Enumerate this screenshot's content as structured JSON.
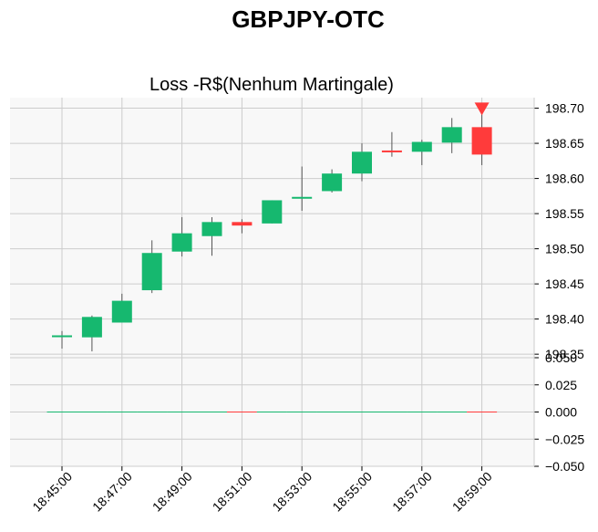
{
  "figure": {
    "title": "GBPJPY-OTC",
    "subtitle": "Loss -R$(Nenhum Martingale)"
  },
  "colors": {
    "up": "#16b86f",
    "down": "#ff3b3b",
    "wick": "#555555",
    "panel_bg": "#f8f8f8",
    "grid": "#cccccc",
    "marker": "#ff3b3b"
  },
  "chart_data": [
    {
      "type": "candlestick",
      "title": "Loss -R$(Nenhum Martingale)",
      "ylim": [
        198.345,
        198.715
      ],
      "yticks": [
        "198.35",
        "198.40",
        "198.45",
        "198.50",
        "198.55",
        "198.60",
        "198.65",
        "198.70"
      ],
      "xticks": [
        "18:45:00",
        "18:47:00",
        "18:49:00",
        "18:51:00",
        "18:53:00",
        "18:55:00",
        "18:57:00",
        "18:59:00"
      ],
      "grid": true,
      "candles": [
        {
          "time": "18:45:00",
          "open": 198.375,
          "high": 198.383,
          "low": 198.358,
          "close": 198.376
        },
        {
          "time": "18:46:00",
          "open": 198.374,
          "high": 198.405,
          "low": 198.354,
          "close": 198.403
        },
        {
          "time": "18:47:00",
          "open": 198.395,
          "high": 198.436,
          "low": 198.395,
          "close": 198.426
        },
        {
          "time": "18:48:00",
          "open": 198.441,
          "high": 198.512,
          "low": 198.437,
          "close": 198.494
        },
        {
          "time": "18:49:00",
          "open": 198.496,
          "high": 198.545,
          "low": 198.489,
          "close": 198.522
        },
        {
          "time": "18:50:00",
          "open": 198.518,
          "high": 198.545,
          "low": 198.49,
          "close": 198.538
        },
        {
          "time": "18:51:00",
          "open": 198.538,
          "high": 198.542,
          "low": 198.522,
          "close": 198.533
        },
        {
          "time": "18:52:00",
          "open": 198.536,
          "high": 198.569,
          "low": 198.536,
          "close": 198.569
        },
        {
          "time": "18:53:00",
          "open": 198.572,
          "high": 198.617,
          "low": 198.554,
          "close": 198.573
        },
        {
          "time": "18:54:00",
          "open": 198.582,
          "high": 198.613,
          "low": 198.58,
          "close": 198.607
        },
        {
          "time": "18:55:00",
          "open": 198.607,
          "high": 198.65,
          "low": 198.596,
          "close": 198.638
        },
        {
          "time": "18:56:00",
          "open": 198.639,
          "high": 198.666,
          "low": 198.631,
          "close": 198.638
        },
        {
          "time": "18:57:00",
          "open": 198.638,
          "high": 198.655,
          "low": 198.619,
          "close": 198.652
        },
        {
          "time": "18:58:00",
          "open": 198.651,
          "high": 198.686,
          "low": 198.636,
          "close": 198.673
        },
        {
          "time": "18:59:00",
          "open": 198.673,
          "high": 198.697,
          "low": 198.619,
          "close": 198.634
        }
      ],
      "marker": {
        "time": "18:59:00",
        "value": 198.699,
        "shape": "triangle-down"
      }
    },
    {
      "type": "bar",
      "ylim": [
        -0.05,
        0.05
      ],
      "yticks": [
        "0.050",
        "0.025",
        "0.000",
        "−0.025",
        "−0.050"
      ],
      "xticks": [
        "18:45:00",
        "18:47:00",
        "18:49:00",
        "18:51:00",
        "18:53:00",
        "18:55:00",
        "18:57:00",
        "18:59:00"
      ],
      "grid": true,
      "values": [
        0,
        0,
        0,
        0,
        0,
        0,
        0,
        0,
        0,
        0,
        0,
        0,
        0,
        0,
        0
      ],
      "colors": [
        "up",
        "up",
        "up",
        "up",
        "up",
        "up",
        "down",
        "up",
        "up",
        "up",
        "up",
        "up",
        "up",
        "up",
        "down"
      ]
    }
  ]
}
